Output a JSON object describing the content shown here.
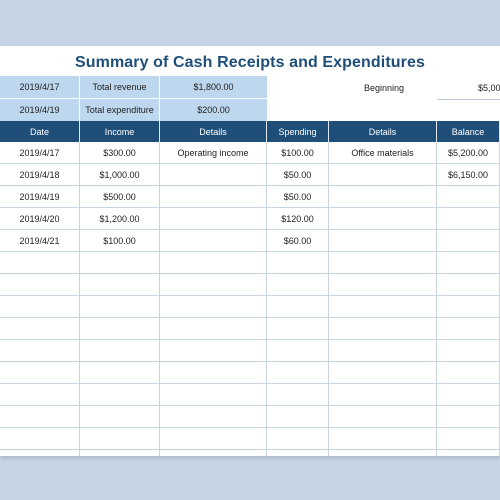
{
  "title": "Summary of Cash Receipts and Expenditures",
  "summary": {
    "row1": {
      "date": "2019/4/17",
      "label": "Total revenue",
      "value": "$1,800.00"
    },
    "row2": {
      "date": "2019/4/19",
      "label": "Total expenditure",
      "value": "$200.00"
    }
  },
  "beginning": {
    "label": "Beginning",
    "value": "$5,00"
  },
  "table": {
    "headers": [
      "Date",
      "Income",
      "Details",
      "Spending",
      "Details",
      "Balance"
    ],
    "rows": [
      [
        "2019/4/17",
        "$300.00",
        "Operating income",
        "$100.00",
        "Office materials",
        "$5,200.00"
      ],
      [
        "2019/4/18",
        "$1,000.00",
        "",
        "$50.00",
        "",
        "$6,150.00"
      ],
      [
        "2019/4/19",
        "$500.00",
        "",
        "$50.00",
        "",
        ""
      ],
      [
        "2019/4/20",
        "$1,200.00",
        "",
        "$120.00",
        "",
        ""
      ],
      [
        "2019/4/21",
        "$100.00",
        "",
        "$60.00",
        "",
        ""
      ]
    ]
  },
  "colors": {
    "header_bg": "#1f4e79",
    "summary_bg": "#bdd7ee",
    "title": "#1f4e79"
  }
}
